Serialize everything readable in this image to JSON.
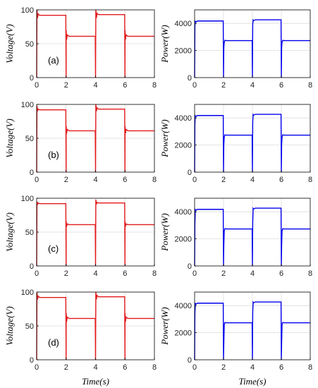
{
  "figure": {
    "x_axis_label": "Time(s)",
    "colors": {
      "voltage": "#e31a1c",
      "power": "#0000ee",
      "grid": "#dcdcdc",
      "axis": "#000000"
    }
  },
  "chart_data": [
    {
      "panel": "(a)",
      "type": "line",
      "ylabel": "Voltage(V)",
      "xlim": [
        0,
        8
      ],
      "ylim": [
        0,
        100
      ],
      "xticks": [
        0,
        2,
        4,
        6,
        8
      ],
      "yticks": [
        0,
        50,
        100
      ],
      "grid": true,
      "series": [
        {
          "color": "#e31a1c",
          "x": [
            0,
            0.02,
            0.06,
            0.1,
            0.2,
            1.98,
            2.0,
            2.005,
            2.03,
            2.08,
            2.2,
            3.98,
            4.0,
            4.02,
            4.06,
            4.1,
            4.2,
            5.98,
            6.0,
            6.005,
            6.03,
            6.08,
            6.2,
            8.0
          ],
          "y": [
            0,
            100,
            88,
            94,
            92,
            92,
            0,
            70,
            56,
            63,
            61,
            61,
            0,
            100,
            88,
            95,
            93,
            93,
            0,
            70,
            56,
            63,
            61,
            61
          ]
        }
      ]
    },
    {
      "panel": "(a)",
      "type": "line",
      "ylabel": "Power(W)",
      "xlim": [
        0,
        8
      ],
      "ylim": [
        0,
        5000
      ],
      "xticks": [
        0,
        2,
        4,
        6,
        8
      ],
      "yticks": [
        0,
        2000,
        4000
      ],
      "grid": true,
      "series": [
        {
          "color": "#0000ee",
          "x": [
            0,
            0.02,
            0.05,
            0.08,
            0.2,
            1.98,
            2.0,
            2.02,
            2.05,
            2.1,
            2.2,
            3.98,
            4.0,
            4.02,
            4.05,
            4.08,
            4.2,
            5.98,
            6.0,
            6.02,
            6.05,
            6.1,
            6.2,
            8.0
          ],
          "y": [
            0,
            3800,
            4150,
            4100,
            4180,
            4180,
            0,
            2200,
            2600,
            2750,
            2730,
            2730,
            0,
            3900,
            4250,
            4200,
            4270,
            4270,
            0,
            2200,
            2600,
            2750,
            2730,
            2730
          ]
        }
      ]
    },
    {
      "panel": "(b)",
      "type": "line",
      "ylabel": "Voltage(V)",
      "xlim": [
        0,
        8
      ],
      "ylim": [
        0,
        100
      ],
      "xticks": [
        0,
        2,
        4,
        6,
        8
      ],
      "yticks": [
        0,
        50,
        100
      ],
      "grid": true,
      "series": [
        {
          "color": "#e31a1c",
          "x": [
            0,
            0.02,
            0.06,
            0.1,
            0.2,
            1.98,
            2.0,
            2.005,
            2.03,
            2.08,
            2.2,
            3.98,
            4.0,
            4.02,
            4.06,
            4.1,
            4.2,
            5.98,
            6.0,
            6.005,
            6.03,
            6.08,
            6.2,
            8.0
          ],
          "y": [
            0,
            98,
            90,
            93,
            92,
            92,
            0,
            68,
            57,
            63,
            61,
            61,
            0,
            100,
            90,
            95,
            93,
            93,
            0,
            68,
            57,
            63,
            61,
            61
          ]
        }
      ]
    },
    {
      "panel": "(b)",
      "type": "line",
      "ylabel": "Power(W)",
      "xlim": [
        0,
        8
      ],
      "ylim": [
        0,
        5000
      ],
      "xticks": [
        0,
        2,
        4,
        6,
        8
      ],
      "yticks": [
        0,
        2000,
        4000
      ],
      "grid": true,
      "series": [
        {
          "color": "#0000ee",
          "x": [
            0,
            0.02,
            0.05,
            0.08,
            0.2,
            1.98,
            2.0,
            2.02,
            2.05,
            2.1,
            2.2,
            3.98,
            4.0,
            4.02,
            4.05,
            4.08,
            4.2,
            5.98,
            6.0,
            6.02,
            6.05,
            6.1,
            6.2,
            8.0
          ],
          "y": [
            0,
            3600,
            4150,
            4100,
            4180,
            4180,
            0,
            2000,
            2600,
            2750,
            2730,
            2730,
            0,
            3700,
            4250,
            4200,
            4270,
            4270,
            0,
            2000,
            2600,
            2750,
            2730,
            2730
          ]
        }
      ]
    },
    {
      "panel": "(c)",
      "type": "line",
      "ylabel": "Voltage(V)",
      "xlim": [
        0,
        8
      ],
      "ylim": [
        0,
        100
      ],
      "xticks": [
        0,
        2,
        4,
        6,
        8
      ],
      "yticks": [
        0,
        50,
        100
      ],
      "grid": true,
      "series": [
        {
          "color": "#e31a1c",
          "x": [
            0,
            0.02,
            0.06,
            0.1,
            0.2,
            1.98,
            2.0,
            2.005,
            2.03,
            2.08,
            2.2,
            3.98,
            4.0,
            4.02,
            4.06,
            4.1,
            4.2,
            5.98,
            6.0,
            6.005,
            6.03,
            6.08,
            6.2,
            8.0
          ],
          "y": [
            0,
            95,
            91,
            93,
            92,
            92,
            0,
            66,
            58,
            62,
            61,
            61,
            0,
            98,
            91,
            94,
            93,
            93,
            0,
            66,
            58,
            62,
            61,
            61
          ]
        }
      ]
    },
    {
      "panel": "(c)",
      "type": "line",
      "ylabel": "Power(W)",
      "xlim": [
        0,
        8
      ],
      "ylim": [
        0,
        5000
      ],
      "xticks": [
        0,
        2,
        4,
        6,
        8
      ],
      "yticks": [
        0,
        2000,
        4000
      ],
      "grid": true,
      "series": [
        {
          "color": "#0000ee",
          "x": [
            0,
            0.02,
            0.05,
            0.08,
            0.2,
            1.98,
            2.0,
            2.02,
            2.05,
            2.1,
            2.2,
            3.98,
            4.0,
            4.02,
            4.05,
            4.08,
            4.2,
            5.98,
            6.0,
            6.02,
            6.05,
            6.1,
            6.2,
            8.0
          ],
          "y": [
            0,
            3100,
            4150,
            4100,
            4180,
            4180,
            0,
            1500,
            2600,
            2750,
            2730,
            2730,
            0,
            3200,
            4250,
            4200,
            4270,
            4270,
            0,
            1500,
            2600,
            2750,
            2730,
            2730
          ]
        }
      ]
    },
    {
      "panel": "(d)",
      "type": "line",
      "ylabel": "Voltage(V)",
      "xlim": [
        0,
        8
      ],
      "ylim": [
        0,
        100
      ],
      "xticks": [
        0,
        2,
        4,
        6,
        8
      ],
      "yticks": [
        0,
        50,
        100
      ],
      "grid": true,
      "series": [
        {
          "color": "#e31a1c",
          "x": [
            0,
            0.02,
            0.06,
            0.1,
            0.2,
            1.98,
            2.0,
            2.005,
            2.03,
            2.08,
            2.2,
            3.98,
            4.0,
            4.02,
            4.06,
            4.1,
            4.2,
            5.98,
            6.0,
            6.005,
            6.03,
            6.08,
            6.2,
            8.0
          ],
          "y": [
            0,
            99,
            89,
            94,
            92,
            92,
            0,
            69,
            56,
            63,
            61,
            61,
            0,
            100,
            89,
            95,
            93,
            93,
            0,
            69,
            56,
            63,
            61,
            61
          ]
        }
      ]
    },
    {
      "panel": "(d)",
      "type": "line",
      "ylabel": "Power(W)",
      "xlim": [
        0,
        8
      ],
      "ylim": [
        0,
        5000
      ],
      "xticks": [
        0,
        2,
        4,
        6,
        8
      ],
      "yticks": [
        0,
        2000,
        4000
      ],
      "grid": true,
      "series": [
        {
          "color": "#0000ee",
          "x": [
            0,
            0.02,
            0.05,
            0.08,
            0.2,
            1.98,
            2.0,
            2.02,
            2.05,
            2.1,
            2.2,
            3.98,
            4.0,
            4.02,
            4.05,
            4.08,
            4.2,
            5.98,
            6.0,
            6.02,
            6.05,
            6.1,
            6.2,
            8.0
          ],
          "y": [
            0,
            3400,
            4150,
            4100,
            4180,
            4180,
            0,
            1200,
            2600,
            2750,
            2730,
            2730,
            0,
            3500,
            4250,
            4200,
            4270,
            4270,
            0,
            1200,
            2600,
            2750,
            2730,
            2730
          ]
        }
      ]
    }
  ]
}
